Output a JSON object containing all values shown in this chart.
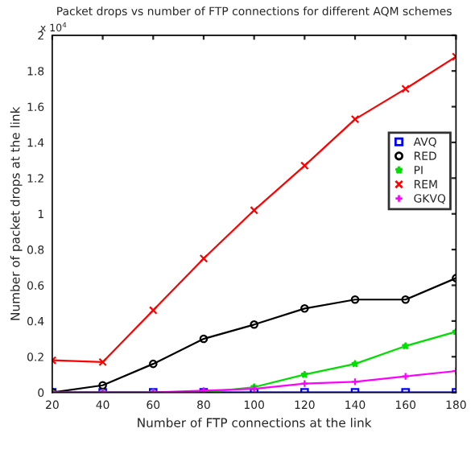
{
  "chart_data": {
    "type": "line",
    "title": "Packet drops vs number of FTP connections for different AQM schemes",
    "xlabel": "Number of FTP connections at the link",
    "ylabel": "Number of packet drops at the link",
    "annotations": [
      "x 10$^{4}$"
    ],
    "x": [
      20,
      40,
      60,
      80,
      100,
      120,
      140,
      160,
      180
    ],
    "series": [
      {
        "name": "AVQ",
        "color": "#0000ff",
        "marker": "square",
        "values": [
          0,
          0,
          0,
          0,
          0,
          0,
          0,
          0,
          0
        ]
      },
      {
        "name": "RED",
        "color": "#000000",
        "marker": "circle",
        "values": [
          0,
          0.04,
          0.16,
          0.3,
          0.38,
          0.47,
          0.52,
          0.52,
          0.64
        ]
      },
      {
        "name": "PI",
        "color": "#00dd00",
        "marker": "star",
        "values": [
          0,
          0,
          0,
          0,
          0.03,
          0.1,
          0.16,
          0.26,
          0.34
        ]
      },
      {
        "name": "REM",
        "color": "#ff0000",
        "marker": "cross",
        "values": [
          0.18,
          0.17,
          0.46,
          0.75,
          1.02,
          1.27,
          1.53,
          1.7,
          1.88
        ]
      },
      {
        "name": "GKVQ",
        "color": "#ff00ff",
        "marker": "plus",
        "values": [
          0,
          0,
          0,
          0.01,
          0.02,
          0.05,
          0.06,
          0.09,
          0.12
        ]
      }
    ],
    "xlim": [
      20,
      180
    ],
    "xticks": [
      20,
      40,
      60,
      80,
      100,
      120,
      140,
      160,
      180
    ],
    "ylim": [
      0,
      2
    ],
    "yticks": [
      0,
      0.2,
      0.4,
      0.6,
      0.8,
      1,
      1.2,
      1.4,
      1.6,
      1.8,
      2
    ],
    "grid": false,
    "legend": "right",
    "line_style": "solid"
  }
}
